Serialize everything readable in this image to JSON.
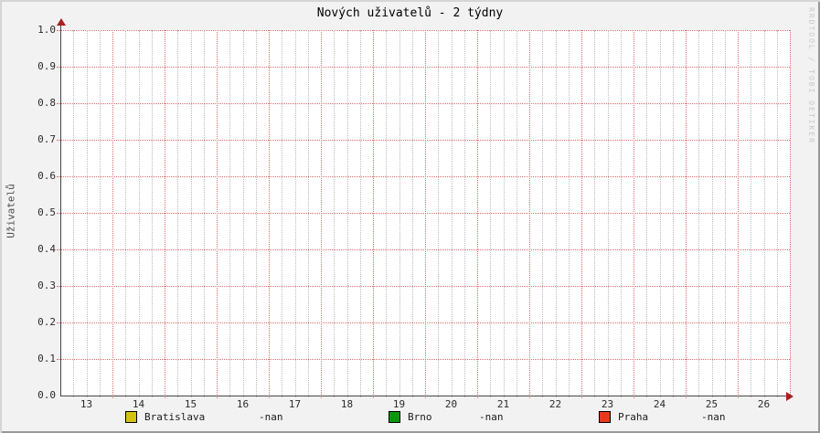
{
  "title": "Nových uživatelů - 2 týdny",
  "watermark": "RRDTOOL / TOBI OETIKER",
  "colors": {
    "canvas_background": "#f2f2f2",
    "plot_background": "#ffffff",
    "major_grid": "#db6c6c",
    "minor_grid": "#bbbbbb",
    "axis": "#474747",
    "axis_arrow": "#a82020",
    "watermark_text": "#c9c9c9",
    "series_bratislava": "#d5c313",
    "series_brno": "#0a970a",
    "series_praha": "#e8391f"
  },
  "chart_data": {
    "type": "line",
    "title": "Nových uživatelů - 2 týdny",
    "xlabel": "",
    "ylabel": "Uživatelů",
    "ylim": [
      0.0,
      1.0
    ],
    "ytick_step": 0.1,
    "yticks": [
      "0.0",
      "0.1",
      "0.2",
      "0.3",
      "0.4",
      "0.5",
      "0.6",
      "0.7",
      "0.8",
      "0.9",
      "1.0"
    ],
    "xticks": [
      "13",
      "14",
      "15",
      "16",
      "17",
      "18",
      "19",
      "20",
      "21",
      "22",
      "23",
      "24",
      "25",
      "26"
    ],
    "x_minor_divisions_per_day": 4,
    "grid": true,
    "legend_position": "bottom",
    "series": [
      {
        "name": "Bratislava",
        "color": "#d5c313",
        "value": "-nan",
        "values": []
      },
      {
        "name": "Brno",
        "color": "#0a970a",
        "value": "-nan",
        "values": []
      },
      {
        "name": "Praha",
        "color": "#e8391f",
        "value": "-nan",
        "values": []
      }
    ]
  }
}
